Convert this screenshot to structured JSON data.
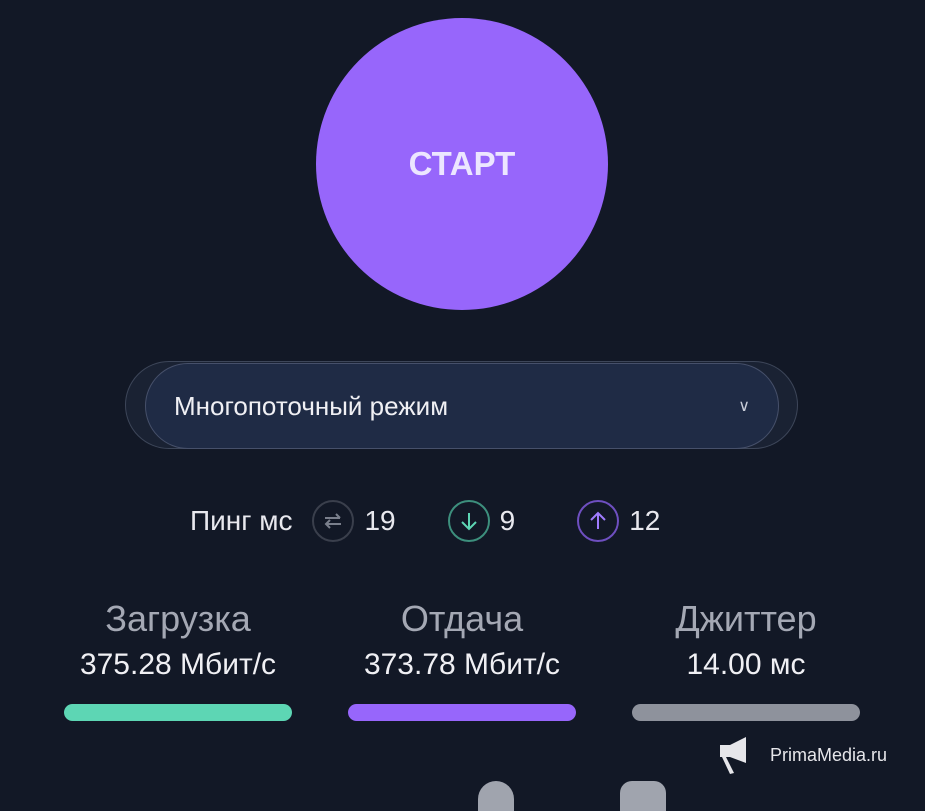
{
  "start_button": {
    "label": "СТАРТ",
    "color": "#9766fb"
  },
  "mode_select": {
    "value": "Многопоточный режим"
  },
  "ping": {
    "label": "Пинг мс",
    "items": [
      {
        "icon": "swap-arrows-icon",
        "value": "19",
        "color": "#6b7080"
      },
      {
        "icon": "arrow-down-icon",
        "value": "9",
        "color": "#5dd6b4"
      },
      {
        "icon": "arrow-up-icon",
        "value": "12",
        "color": "#9766fb"
      }
    ]
  },
  "stats": [
    {
      "title": "Загрузка",
      "value": "375.28 Мбит/с",
      "color": "#5dd6b4"
    },
    {
      "title": "Отдача",
      "value": "373.78 Мбит/с",
      "color": "#9766fb"
    },
    {
      "title": "Джиттер",
      "value": "14.00 мс",
      "color": "#8e929c"
    }
  ],
  "watermark": {
    "text": "PrimaMedia.ru"
  }
}
